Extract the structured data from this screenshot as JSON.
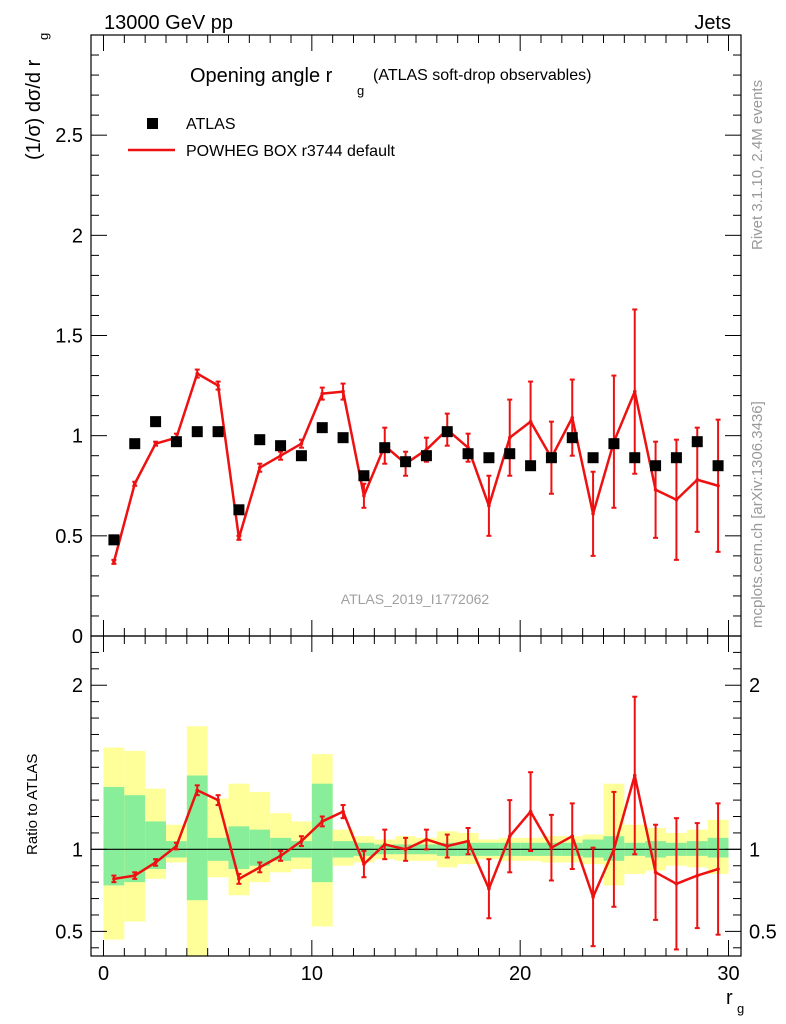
{
  "header": {
    "left": "13000 GeV pp",
    "right": "Jets"
  },
  "title": {
    "main": "Opening angle r",
    "sub": "g",
    "note": "(ATLAS soft-drop observables)"
  },
  "watermark": "ATLAS_2019_I1772062",
  "side_text": {
    "rivet": "Rivet 3.1.10,  2.4M events",
    "mcplots": "mcplots.cern.ch [arXiv:1306.3436]"
  },
  "labels": {
    "ylabel_main": "(1/σ) dσ/d r",
    "ylabel_main_sub": "g",
    "ylabel_ratio": "Ratio to ATLAS",
    "xlabel": "r",
    "xlabel_sub": "g"
  },
  "legend": {
    "data_label": "ATLAS",
    "mc_label": "POWHEG BOX r3744 default"
  },
  "colors": {
    "mc": "#ee1111",
    "data": "#000000",
    "band_inner": "#88ee99",
    "band_outer": "#ffff99",
    "side_text": "#999999"
  },
  "chart_data": {
    "type": "line",
    "x": [
      0.5,
      1.5,
      2.5,
      3.5,
      4.5,
      5.5,
      6.5,
      7.5,
      8.5,
      9.5,
      10.5,
      11.5,
      12.5,
      13.5,
      14.5,
      15.5,
      16.5,
      17.5,
      18.5,
      19.5,
      20.5,
      21.5,
      22.5,
      23.5,
      24.5,
      25.5,
      26.5,
      27.5,
      28.5,
      29.5
    ],
    "xlim": [
      -0.6,
      30.6
    ],
    "x_ticks": [
      "0",
      "10",
      "20",
      "30"
    ],
    "main_panel": {
      "ylim": [
        0,
        3.0
      ],
      "y_ticks": [
        "0.5",
        "1",
        "1.5",
        "2",
        "2.5"
      ],
      "series": [
        {
          "name": "ATLAS",
          "style": "markers",
          "values": [
            0.48,
            0.96,
            1.07,
            0.97,
            1.02,
            1.02,
            0.63,
            0.98,
            0.95,
            0.9,
            1.04,
            0.99,
            0.8,
            0.94,
            0.87,
            0.9,
            1.02,
            0.91,
            0.89,
            0.91,
            0.85,
            0.89,
            0.99,
            0.89,
            0.96,
            0.89,
            0.85,
            0.89,
            0.97,
            0.85
          ]
        },
        {
          "name": "POWHEG BOX r3744 default",
          "style": "line",
          "values": [
            0.37,
            0.76,
            0.96,
            0.99,
            1.31,
            1.25,
            0.49,
            0.84,
            0.9,
            0.96,
            1.21,
            1.22,
            0.7,
            0.95,
            0.86,
            0.93,
            1.03,
            0.94,
            0.65,
            0.99,
            1.07,
            0.89,
            1.09,
            0.61,
            0.97,
            1.22,
            0.73,
            0.68,
            0.78,
            0.75
          ],
          "errors": [
            0.01,
            0.01,
            0.01,
            0.02,
            0.02,
            0.02,
            0.01,
            0.02,
            0.02,
            0.02,
            0.03,
            0.04,
            0.06,
            0.09,
            0.06,
            0.06,
            0.08,
            0.07,
            0.15,
            0.19,
            0.2,
            0.18,
            0.19,
            0.21,
            0.33,
            0.41,
            0.24,
            0.3,
            0.26,
            0.33
          ]
        }
      ]
    },
    "ratio_panel": {
      "ylim": [
        0.35,
        2.3
      ],
      "y_ticks": [
        "0.5",
        "1",
        "2"
      ],
      "reference": 1.0,
      "mc_ratio": [
        0.82,
        0.84,
        0.92,
        1.02,
        1.36,
        1.3,
        0.82,
        0.89,
        0.96,
        1.05,
        1.17,
        1.23,
        0.91,
        1.03,
        1.0,
        1.06,
        1.02,
        1.05,
        0.76,
        1.08,
        1.23,
        1.01,
        1.08,
        0.71,
        1.0,
        1.45,
        0.86,
        0.79,
        0.84,
        0.88
      ],
      "mc_ratio_errors": [
        0.02,
        0.02,
        0.02,
        0.02,
        0.03,
        0.03,
        0.03,
        0.03,
        0.03,
        0.03,
        0.03,
        0.04,
        0.08,
        0.09,
        0.07,
        0.06,
        0.07,
        0.08,
        0.18,
        0.22,
        0.24,
        0.2,
        0.2,
        0.3,
        0.35,
        0.48,
        0.29,
        0.4,
        0.32,
        0.4
      ],
      "band_inner": [
        [
          0.78,
          1.38
        ],
        [
          0.8,
          1.33
        ],
        [
          0.88,
          1.17
        ],
        [
          0.95,
          1.05
        ],
        [
          0.69,
          1.45
        ],
        [
          0.93,
          1.07
        ],
        [
          0.88,
          1.14
        ],
        [
          0.9,
          1.12
        ],
        [
          0.93,
          1.07
        ],
        [
          0.95,
          1.05
        ],
        [
          0.8,
          1.4
        ],
        [
          0.95,
          1.05
        ],
        [
          0.96,
          1.04
        ],
        [
          0.97,
          1.03
        ],
        [
          0.97,
          1.03
        ],
        [
          0.97,
          1.03
        ],
        [
          0.96,
          1.04
        ],
        [
          0.96,
          1.04
        ],
        [
          0.96,
          1.04
        ],
        [
          0.96,
          1.04
        ],
        [
          0.96,
          1.04
        ],
        [
          0.96,
          1.04
        ],
        [
          0.96,
          1.04
        ],
        [
          0.95,
          1.06
        ],
        [
          0.93,
          1.08
        ],
        [
          0.96,
          1.04
        ],
        [
          0.95,
          1.05
        ],
        [
          0.96,
          1.04
        ],
        [
          0.96,
          1.05
        ],
        [
          0.95,
          1.07
        ]
      ],
      "band_outer": [
        [
          0.45,
          1.62
        ],
        [
          0.56,
          1.6
        ],
        [
          0.82,
          1.37
        ],
        [
          0.92,
          1.15
        ],
        [
          0.33,
          1.75
        ],
        [
          0.83,
          1.31
        ],
        [
          0.72,
          1.4
        ],
        [
          0.8,
          1.35
        ],
        [
          0.86,
          1.22
        ],
        [
          0.88,
          1.17
        ],
        [
          0.53,
          1.58
        ],
        [
          0.9,
          1.12
        ],
        [
          0.92,
          1.08
        ],
        [
          0.94,
          1.06
        ],
        [
          0.93,
          1.08
        ],
        [
          0.93,
          1.07
        ],
        [
          0.89,
          1.11
        ],
        [
          0.91,
          1.1
        ],
        [
          0.94,
          1.06
        ],
        [
          0.93,
          1.07
        ],
        [
          0.93,
          1.07
        ],
        [
          0.92,
          1.08
        ],
        [
          0.92,
          1.08
        ],
        [
          0.91,
          1.09
        ],
        [
          0.78,
          1.4
        ],
        [
          0.85,
          1.15
        ],
        [
          0.87,
          1.13
        ],
        [
          0.9,
          1.1
        ],
        [
          0.89,
          1.12
        ],
        [
          0.85,
          1.18
        ]
      ]
    }
  }
}
